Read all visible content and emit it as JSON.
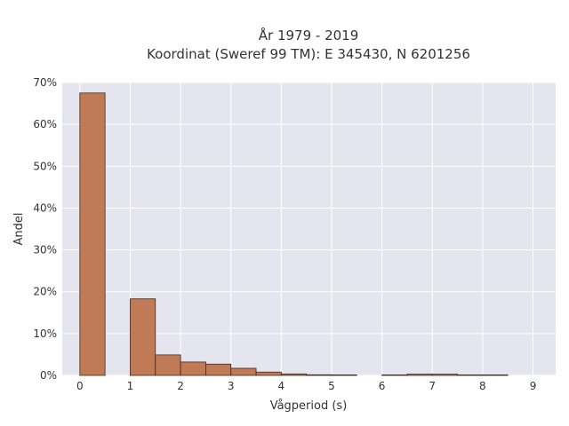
{
  "chart_data": {
    "type": "bar",
    "title_lines": [
      "År 1979 - 2019",
      "Koordinat (Sweref 99 TM): E 345430, N 6201256"
    ],
    "xlabel": "Vågperiod (s)",
    "ylabel": "Andel",
    "xlim": [
      -0.35,
      9.45
    ],
    "ylim": [
      0,
      70
    ],
    "x_ticks": [
      0,
      1,
      2,
      3,
      4,
      5,
      6,
      7,
      8,
      9
    ],
    "y_ticks": [
      0,
      10,
      20,
      30,
      40,
      50,
      60,
      70
    ],
    "y_tick_labels": [
      "0%",
      "10%",
      "20%",
      "30%",
      "40%",
      "50%",
      "60%",
      "70%"
    ],
    "bin_width": 0.5,
    "bins": [
      {
        "x0": 0.0,
        "value": 67.5
      },
      {
        "x0": 1.0,
        "value": 18.3
      },
      {
        "x0": 1.5,
        "value": 4.9
      },
      {
        "x0": 2.0,
        "value": 3.2
      },
      {
        "x0": 2.5,
        "value": 2.7
      },
      {
        "x0": 3.0,
        "value": 1.7
      },
      {
        "x0": 3.5,
        "value": 0.8
      },
      {
        "x0": 4.0,
        "value": 0.35
      },
      {
        "x0": 4.5,
        "value": 0.15
      },
      {
        "x0": 5.0,
        "value": 0.08
      },
      {
        "x0": 6.0,
        "value": 0.05
      },
      {
        "x0": 6.5,
        "value": 0.3
      },
      {
        "x0": 7.0,
        "value": 0.3
      },
      {
        "x0": 7.5,
        "value": 0.12
      },
      {
        "x0": 8.0,
        "value": 0.08
      }
    ],
    "bar_color": "#c07a55",
    "edge_color": "#3d2a1e",
    "plot_background": "#e5e5ef",
    "grid": true
  }
}
